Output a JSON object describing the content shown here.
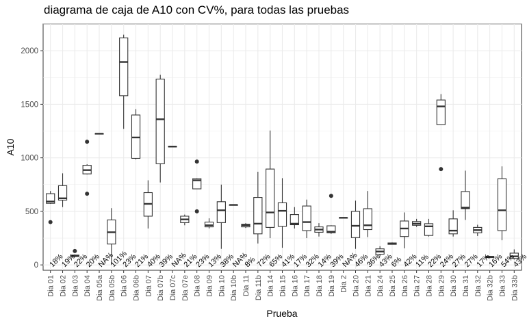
{
  "chart_data": {
    "type": "boxplot",
    "title": "diagrama de caja de A10 con CV%, para todas las pruebas",
    "xlabel": "Prueba",
    "ylabel": "A10",
    "ylim": [
      -50,
      2250
    ],
    "yticks": [
      0,
      500,
      1000,
      1500,
      2000
    ],
    "grid": true,
    "categories": [
      {
        "name": "Dia 01",
        "cv": "18%",
        "min": 570,
        "q1": 575,
        "med": 592,
        "q3": 665,
        "max": 690,
        "out": [
          400
        ]
      },
      {
        "name": "Dia 02",
        "cv": "19%",
        "min": 540,
        "q1": 605,
        "med": 622,
        "q3": 740,
        "max": 855,
        "out": []
      },
      {
        "name": "Dia 03",
        "cv": "22%",
        "min": 75,
        "q1": 78,
        "med": 85,
        "q3": 92,
        "max": 98,
        "out": [
          130
        ]
      },
      {
        "name": "Dia 04",
        "cv": "20%",
        "min": 845,
        "q1": 850,
        "med": 885,
        "q3": 930,
        "max": 940,
        "out": [
          1150,
          665
        ]
      },
      {
        "name": "Dia 05a",
        "cv": "NA%",
        "min": 1225,
        "q1": 1225,
        "med": 1225,
        "q3": 1225,
        "max": 1225,
        "out": []
      },
      {
        "name": "Dia 05b",
        "cv": "101%",
        "min": 0,
        "q1": 195,
        "med": 305,
        "q3": 420,
        "max": 530,
        "out": []
      },
      {
        "name": "Dia 06",
        "cv": "23%",
        "min": 1270,
        "q1": 1580,
        "med": 1895,
        "q3": 2120,
        "max": 2150,
        "out": []
      },
      {
        "name": "Dia 06b",
        "cv": "21%",
        "min": 985,
        "q1": 995,
        "med": 1190,
        "q3": 1400,
        "max": 1455,
        "out": []
      },
      {
        "name": "Dia 07",
        "cv": "40%",
        "min": 340,
        "q1": 455,
        "med": 570,
        "q3": 675,
        "max": 790,
        "out": []
      },
      {
        "name": "Dia 07b",
        "cv": "39%",
        "min": 770,
        "q1": 945,
        "med": 1360,
        "q3": 1735,
        "max": 1775,
        "out": []
      },
      {
        "name": "Dia 07c",
        "cv": "NA%",
        "min": 1105,
        "q1": 1105,
        "med": 1105,
        "q3": 1105,
        "max": 1105,
        "out": []
      },
      {
        "name": "Dia 07e",
        "cv": "21%",
        "min": 370,
        "q1": 395,
        "med": 425,
        "q3": 455,
        "max": 470,
        "out": []
      },
      {
        "name": "Dia 08",
        "cv": "23%",
        "min": 710,
        "q1": 710,
        "med": 790,
        "q3": 805,
        "max": 810,
        "out": [
          965,
          500
        ]
      },
      {
        "name": "Dia 09",
        "cv": "13%",
        "min": 340,
        "q1": 355,
        "med": 370,
        "q3": 400,
        "max": 435,
        "out": []
      },
      {
        "name": "Dia 10",
        "cv": "38%",
        "min": 150,
        "q1": 395,
        "med": 510,
        "q3": 590,
        "max": 750,
        "out": []
      },
      {
        "name": "Dia 10b",
        "cv": "NA%",
        "min": 560,
        "q1": 560,
        "med": 560,
        "q3": 560,
        "max": 560,
        "out": []
      },
      {
        "name": "Dia 11",
        "cv": "8%",
        "min": 345,
        "q1": 355,
        "med": 370,
        "q3": 380,
        "max": 390,
        "out": []
      },
      {
        "name": "Dia 11b",
        "cv": "72%",
        "min": 200,
        "q1": 290,
        "med": 385,
        "q3": 630,
        "max": 870,
        "out": []
      },
      {
        "name": "Dia 14",
        "cv": "65%",
        "min": 250,
        "q1": 350,
        "med": 490,
        "q3": 895,
        "max": 1255,
        "out": []
      },
      {
        "name": "Dia 15",
        "cv": "41%",
        "min": 160,
        "q1": 360,
        "med": 505,
        "q3": 580,
        "max": 810,
        "out": []
      },
      {
        "name": "Dia 16",
        "cv": "17%",
        "min": 340,
        "q1": 375,
        "med": 385,
        "q3": 470,
        "max": 540,
        "out": []
      },
      {
        "name": "Dia 17",
        "cv": "32%",
        "min": 250,
        "q1": 320,
        "med": 400,
        "q3": 550,
        "max": 610,
        "out": []
      },
      {
        "name": "Dia 18",
        "cv": "14%",
        "min": 265,
        "q1": 305,
        "med": 330,
        "q3": 355,
        "max": 390,
        "out": []
      },
      {
        "name": "Dia 19",
        "cv": "39%",
        "min": 290,
        "q1": 300,
        "med": 310,
        "q3": 365,
        "max": 370,
        "out": [
          645
        ]
      },
      {
        "name": "Dia 2",
        "cv": "NA%",
        "min": 440,
        "q1": 440,
        "med": 440,
        "q3": 440,
        "max": 440,
        "out": []
      },
      {
        "name": "Dia 20",
        "cv": "46%",
        "min": 150,
        "q1": 255,
        "med": 365,
        "q3": 500,
        "max": 600,
        "out": []
      },
      {
        "name": "Dia 21",
        "cv": "36%",
        "min": 260,
        "q1": 330,
        "med": 370,
        "q3": 525,
        "max": 690,
        "out": []
      },
      {
        "name": "Dia 24",
        "cv": "43%",
        "min": 80,
        "q1": 100,
        "med": 125,
        "q3": 150,
        "max": 175,
        "out": []
      },
      {
        "name": "Dia 25",
        "cv": "6%",
        "min": 190,
        "q1": 192,
        "med": 200,
        "q3": 205,
        "max": 210,
        "out": []
      },
      {
        "name": "Dia 26",
        "cv": "42%",
        "min": 155,
        "q1": 265,
        "med": 340,
        "q3": 410,
        "max": 490,
        "out": []
      },
      {
        "name": "Dia 27",
        "cv": "11%",
        "min": 355,
        "q1": 370,
        "med": 385,
        "q3": 405,
        "max": 430,
        "out": []
      },
      {
        "name": "Dia 28",
        "cv": "22%",
        "min": 265,
        "q1": 275,
        "med": 360,
        "q3": 385,
        "max": 430,
        "out": []
      },
      {
        "name": "Dia 29",
        "cv": "24%",
        "min": 1310,
        "q1": 1310,
        "med": 1480,
        "q3": 1540,
        "max": 1595,
        "out": [
          895
        ]
      },
      {
        "name": "Dia 30",
        "cv": "27%",
        "min": 265,
        "q1": 290,
        "med": 320,
        "q3": 430,
        "max": 510,
        "out": []
      },
      {
        "name": "Dia 31",
        "cv": "27%",
        "min": 420,
        "q1": 525,
        "med": 535,
        "q3": 685,
        "max": 880,
        "out": []
      },
      {
        "name": "Dia 32",
        "cv": "17%",
        "min": 270,
        "q1": 300,
        "med": 325,
        "q3": 350,
        "max": 375,
        "out": []
      },
      {
        "name": "Dia 32b",
        "cv": "16%",
        "min": 62,
        "q1": 68,
        "med": 75,
        "q3": 80,
        "max": 84,
        "out": []
      },
      {
        "name": "Dia 33",
        "cv": "54%",
        "min": 230,
        "q1": 320,
        "med": 510,
        "q3": 805,
        "max": 920,
        "out": []
      },
      {
        "name": "Dia 33b",
        "cv": "43%",
        "min": 50,
        "q1": 60,
        "med": 80,
        "q3": 110,
        "max": 145,
        "out": []
      }
    ]
  }
}
